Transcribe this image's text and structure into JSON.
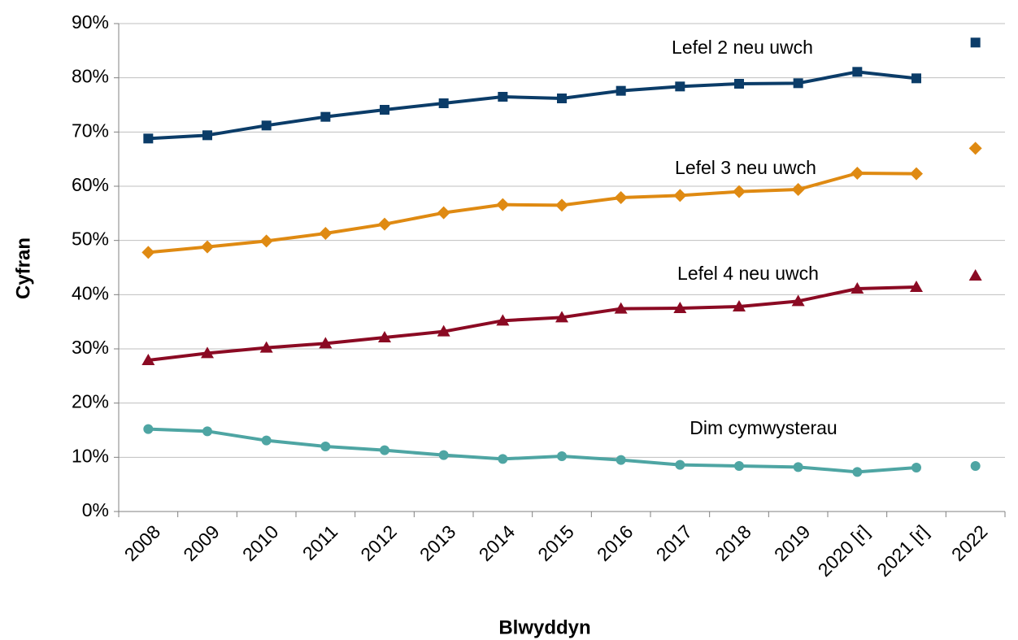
{
  "chart_data": {
    "type": "line",
    "x_label": "Blwyddyn",
    "y_label": "Cyfran",
    "categories": [
      "2008",
      "2009",
      "2010",
      "2011",
      "2012",
      "2013",
      "2014",
      "2015",
      "2016",
      "2017",
      "2018",
      "2019",
      "2020 [r]",
      "2021 [r]",
      "2022"
    ],
    "ylim": [
      0,
      90
    ],
    "yticks": [
      {
        "value": 0,
        "label": "0%"
      },
      {
        "value": 10,
        "label": "10%"
      },
      {
        "value": 20,
        "label": "20%"
      },
      {
        "value": 30,
        "label": "30%"
      },
      {
        "value": 40,
        "label": "40%"
      },
      {
        "value": 50,
        "label": "50%"
      },
      {
        "value": 60,
        "label": "60%"
      },
      {
        "value": 70,
        "label": "70%"
      },
      {
        "value": 80,
        "label": "80%"
      },
      {
        "value": 90,
        "label": "90%"
      }
    ],
    "grid": true,
    "connect_last_point": false,
    "series": [
      {
        "name": "Lefel 2 neu uwch",
        "color": "#0b3c68",
        "marker": "square",
        "values": [
          68.8,
          69.4,
          71.2,
          72.8,
          74.1,
          75.3,
          76.5,
          76.2,
          77.6,
          78.4,
          78.9,
          79.0,
          81.1,
          79.9,
          86.5
        ]
      },
      {
        "name": "Lefel 3 neu uwch",
        "color": "#df8a12",
        "marker": "diamond",
        "values": [
          47.8,
          48.8,
          49.9,
          51.3,
          53.0,
          55.1,
          56.6,
          56.5,
          57.9,
          58.3,
          59.0,
          59.4,
          62.4,
          62.3,
          67.0
        ]
      },
      {
        "name": "Lefel 4 neu uwch",
        "color": "#8b0a23",
        "marker": "triangle",
        "values": [
          27.9,
          29.2,
          30.2,
          31.0,
          32.1,
          33.2,
          35.2,
          35.8,
          37.4,
          37.5,
          37.8,
          38.8,
          41.1,
          41.4,
          43.5
        ]
      },
      {
        "name": "Dim cymwysterau",
        "color": "#4ea5a3",
        "marker": "circle",
        "values": [
          15.2,
          14.8,
          13.1,
          12.0,
          11.3,
          10.4,
          9.7,
          10.2,
          9.5,
          8.6,
          8.4,
          8.2,
          7.3,
          8.1,
          8.4
        ]
      }
    ]
  }
}
